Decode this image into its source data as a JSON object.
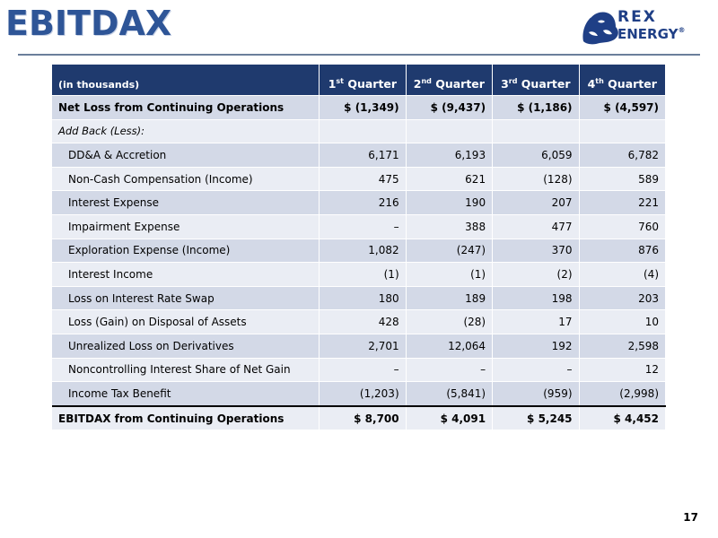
{
  "slide": {
    "title": "EBITDAX",
    "page_number": "17",
    "logo": {
      "line1": "REX",
      "line2": "ENERGY",
      "reg": "®"
    }
  },
  "table": {
    "header": {
      "label": "(in thousands)",
      "quarters": [
        {
          "num": "1",
          "sup": "st",
          "word": " Quarter"
        },
        {
          "num": "2",
          "sup": "nd",
          "word": " Quarter"
        },
        {
          "num": "3",
          "sup": "rd",
          "word": " Quarter"
        },
        {
          "num": "4",
          "sup": "th",
          "word": " Quarter"
        }
      ]
    },
    "rows": [
      {
        "label": "Net Loss from Continuing Operations",
        "values": [
          "$ (1,349)",
          "$ (9,437)",
          "$ (1,186)",
          "$ (4,597)"
        ]
      },
      {
        "label": "Add Back (Less):",
        "values": [
          "",
          "",
          "",
          ""
        ]
      },
      {
        "label": "DD&A & Accretion",
        "values": [
          "6,171",
          "6,193",
          "6,059",
          "6,782"
        ]
      },
      {
        "label": "Non-Cash Compensation (Income)",
        "values": [
          "475",
          "621",
          "(128)",
          "589"
        ]
      },
      {
        "label": "Interest Expense",
        "values": [
          "216",
          "190",
          "207",
          "221"
        ]
      },
      {
        "label": "Impairment Expense",
        "values": [
          "–",
          "388",
          "477",
          "760"
        ]
      },
      {
        "label": "Exploration Expense (Income)",
        "values": [
          "1,082",
          "(247)",
          "370",
          "876"
        ]
      },
      {
        "label": "Interest Income",
        "values": [
          "(1)",
          "(1)",
          "(2)",
          "(4)"
        ]
      },
      {
        "label": "Loss on Interest Rate Swap",
        "values": [
          "180",
          "189",
          "198",
          "203"
        ]
      },
      {
        "label": "Loss (Gain) on Disposal of Assets",
        "values": [
          "428",
          "(28)",
          "17",
          "10"
        ]
      },
      {
        "label": "Unrealized Loss on Derivatives",
        "values": [
          "2,701",
          "12,064",
          "192",
          "2,598"
        ]
      },
      {
        "label": "Noncontrolling Interest Share of Net Gain",
        "values": [
          "–",
          "–",
          "–",
          "12"
        ]
      },
      {
        "label": "Income Tax Benefit",
        "values": [
          "(1,203)",
          "(5,841)",
          "(959)",
          "(2,998)"
        ]
      },
      {
        "label": "EBITDAX from Continuing Operations",
        "values": [
          "$ 8,700",
          "$ 4,091",
          "$ 5,245",
          "$ 4,452"
        ]
      }
    ]
  },
  "colors": {
    "title": "#2e5597",
    "header_bg": "#1f3a6e",
    "row_dark": "#d3d9e7",
    "row_light": "#eaedf4",
    "logo": "#1f3f86"
  }
}
